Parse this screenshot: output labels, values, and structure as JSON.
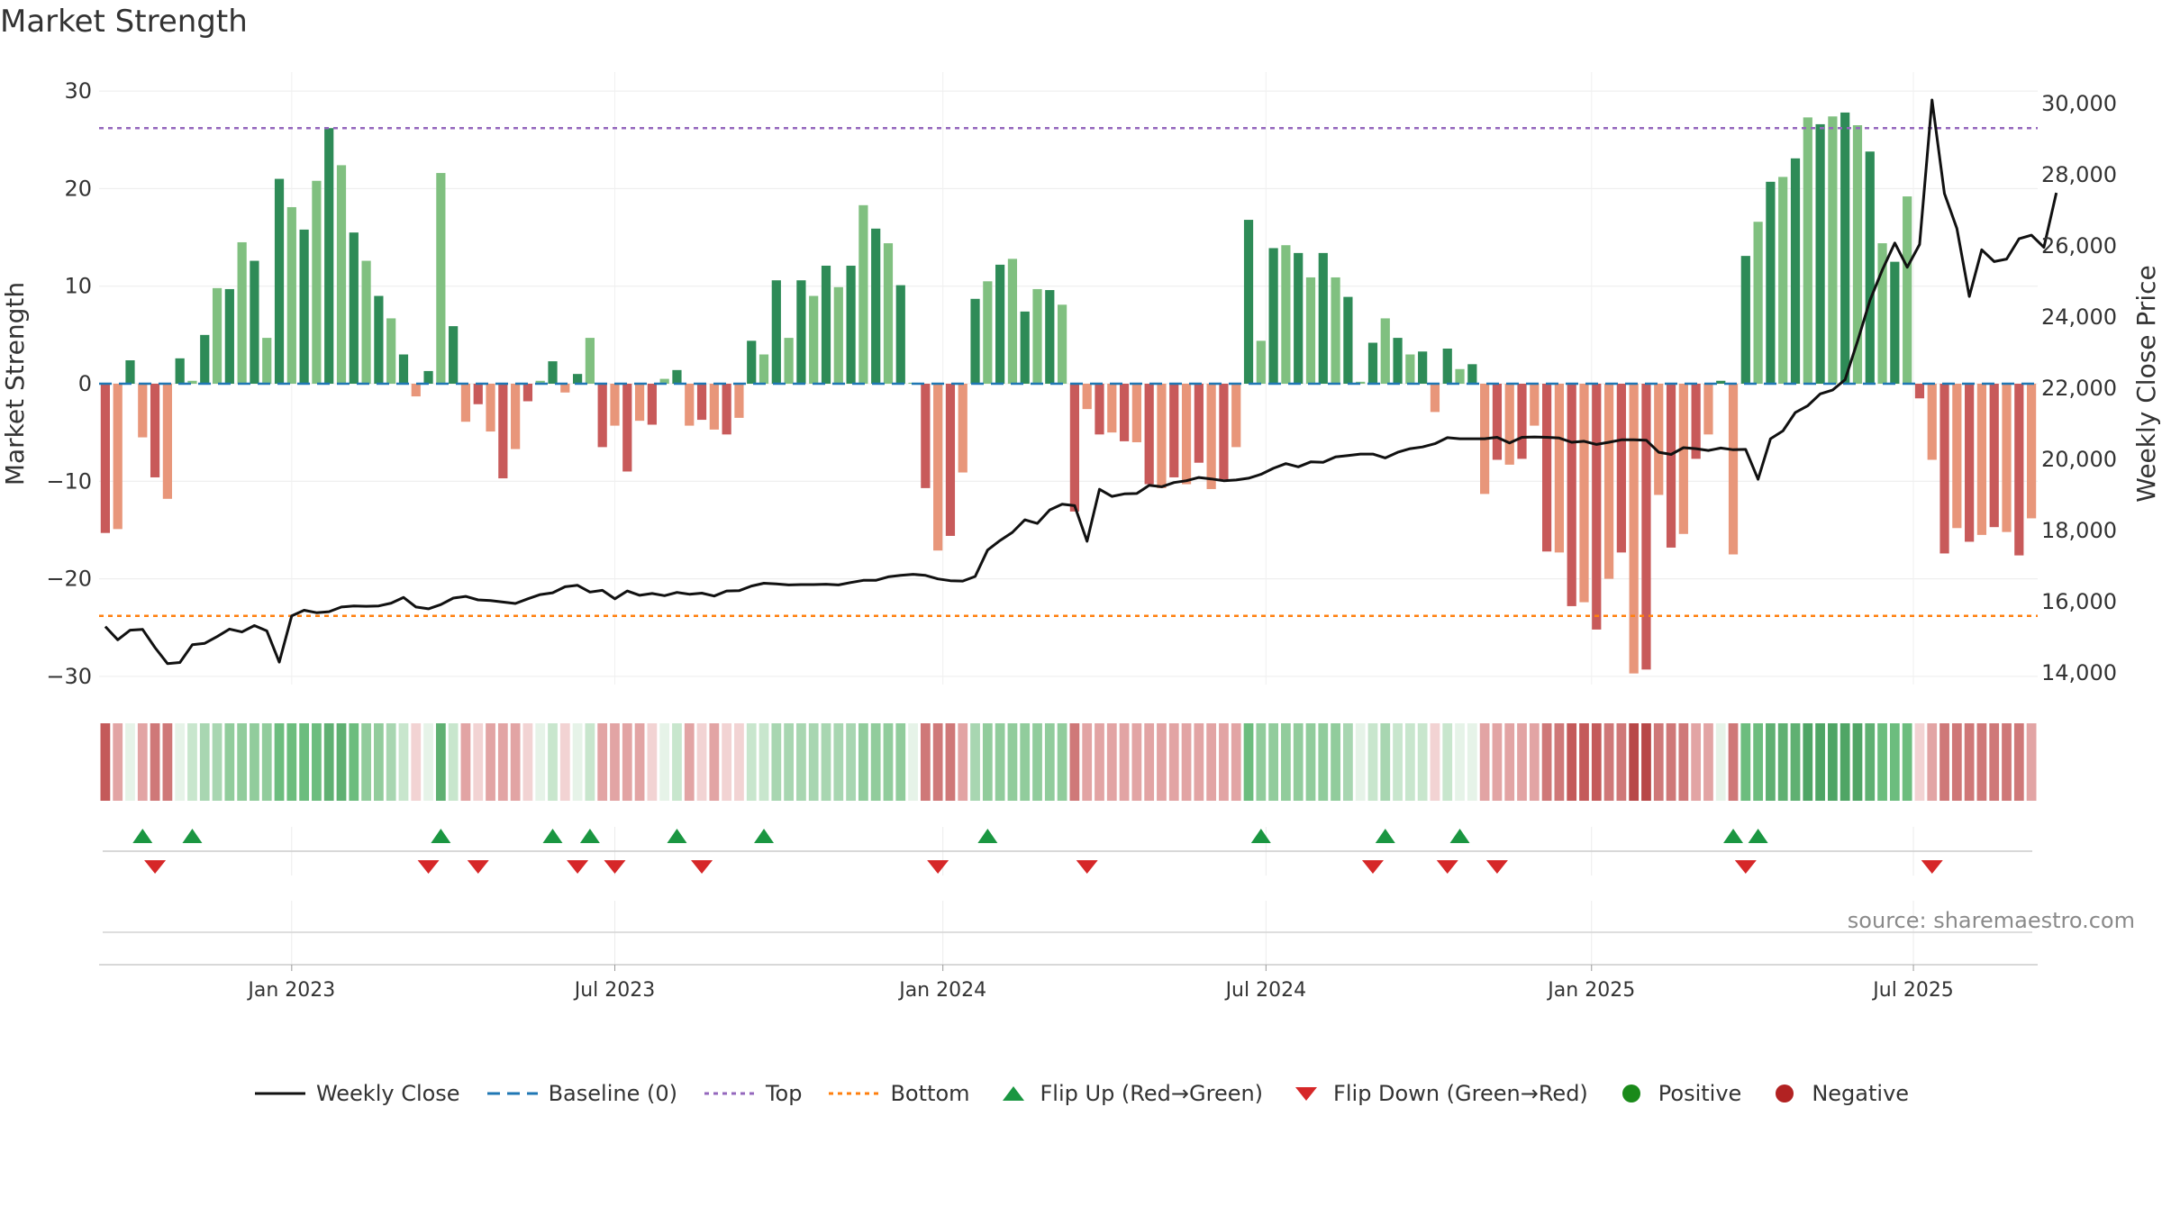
{
  "chart_data": {
    "type": "bar",
    "title": "Market Strength",
    "ylabel": "Market Strength",
    "y2label": "Weekly Close Price",
    "ylim": [
      -33,
      33
    ],
    "y2lim": [
      13160,
      30640
    ],
    "yticks": [
      30,
      20,
      10,
      0,
      -10,
      -20,
      -30
    ],
    "ytick_labels": [
      "30",
      "20",
      "10",
      "0",
      "−10",
      "−20",
      "−30"
    ],
    "y2ticks": [
      30000,
      28000,
      26000,
      24000,
      22000,
      20000,
      18000,
      16000,
      14000
    ],
    "y2tick_labels": [
      "30,000",
      "28,000",
      "26,000",
      "24,000",
      "22,000",
      "20,000",
      "18,000",
      "16,000",
      "14,000"
    ],
    "xticks": [
      {
        "label": "Jan 2023",
        "week": 15
      },
      {
        "label": "Jul 2023",
        "week": 41
      },
      {
        "label": "Jan 2024",
        "week": 67.4
      },
      {
        "label": "Jul 2024",
        "week": 93.4
      },
      {
        "label": "Jan 2025",
        "week": 119.6
      },
      {
        "label": "Jul 2025",
        "week": 145.5
      }
    ],
    "top_line": 26.2,
    "bottom_line": -23.8,
    "series": [
      {
        "name": "Market Strength",
        "values": [
          -15.3,
          -14.9,
          2.4,
          -5.5,
          -9.6,
          -11.8,
          2.6,
          0.3,
          5.0,
          9.8,
          9.7,
          14.5,
          12.6,
          4.7,
          21.0,
          18.1,
          15.8,
          20.8,
          26.2,
          22.4,
          15.5,
          12.6,
          9.0,
          6.7,
          3.0,
          -1.3,
          1.3,
          21.6,
          5.9,
          -3.9,
          -2.1,
          -4.9,
          -9.7,
          -6.7,
          -1.8,
          0.3,
          2.3,
          -0.9,
          1.0,
          4.7,
          -6.5,
          -4.3,
          -9.0,
          -3.8,
          -4.2,
          0.5,
          1.4,
          -4.3,
          -3.7,
          -4.7,
          -5.2,
          -3.5,
          4.4,
          3.0,
          10.6,
          4.7,
          10.6,
          9.0,
          12.1,
          9.9,
          12.1,
          18.3,
          15.9,
          14.4,
          10.1,
          0.1,
          -10.7,
          -17.1,
          -15.6,
          -9.1,
          8.7,
          10.5,
          12.2,
          12.8,
          7.4,
          9.7,
          9.6,
          8.1,
          -13.1,
          -2.6,
          -5.2,
          -5.0,
          -5.9,
          -6.0,
          -10.3,
          -10.7,
          -9.6,
          -10.3,
          -8.1,
          -10.8,
          -9.8,
          -6.5,
          16.8,
          4.4,
          13.9,
          14.2,
          13.4,
          10.9,
          13.4,
          10.9,
          8.9,
          0.2,
          4.2,
          6.7,
          4.7,
          3.0,
          3.3,
          -2.9,
          3.6,
          1.5,
          2.0,
          -11.3,
          -7.8,
          -8.3,
          -7.7,
          -4.3,
          -17.2,
          -17.3,
          -22.8,
          -22.4,
          -25.2,
          -20.0,
          -17.3,
          -29.7,
          -29.3,
          -11.4,
          -16.8,
          -15.4,
          -7.7,
          -5.2,
          0.3,
          -17.5,
          13.1,
          16.6,
          20.7,
          21.2,
          23.1,
          27.3,
          26.6,
          27.4,
          27.8,
          26.5,
          23.8,
          14.4,
          12.5,
          19.2,
          -1.5,
          -7.8,
          -17.4,
          -14.8,
          -16.2,
          -15.5,
          -14.7,
          -15.2,
          -17.6,
          -13.8
        ]
      },
      {
        "name": "Weekly Close",
        "values": [
          15300,
          14930,
          15200,
          15220,
          14710,
          14260,
          14290,
          14790,
          14830,
          15020,
          15230,
          15150,
          15330,
          15180,
          14300,
          15600,
          15760,
          15690,
          15720,
          15850,
          15880,
          15870,
          15880,
          15960,
          16120,
          15850,
          15800,
          15920,
          16100,
          16150,
          16050,
          16030,
          15990,
          15950,
          16080,
          16200,
          16250,
          16420,
          16460,
          16270,
          16320,
          16080,
          16300,
          16180,
          16230,
          16170,
          16260,
          16210,
          16240,
          16160,
          16300,
          16310,
          16440,
          16520,
          16500,
          16470,
          16480,
          16480,
          16490,
          16470,
          16540,
          16600,
          16600,
          16700,
          16740,
          16770,
          16740,
          16640,
          16590,
          16580,
          16710,
          17450,
          17720,
          17950,
          18300,
          18200,
          18580,
          18740,
          18700,
          17700,
          19160,
          18960,
          19030,
          19040,
          19270,
          19230,
          19350,
          19400,
          19490,
          19450,
          19400,
          19420,
          19470,
          19580,
          19750,
          19880,
          19790,
          19930,
          19920,
          20070,
          20110,
          20150,
          20150,
          20040,
          20200,
          20300,
          20350,
          20440,
          20610,
          20580,
          20580,
          20580,
          20620,
          20460,
          20620,
          20630,
          20620,
          20600,
          20480,
          20510,
          20420,
          20480,
          20550,
          20550,
          20540,
          20200,
          20140,
          20330,
          20300,
          20250,
          20320,
          20270,
          20280,
          19440,
          20580,
          20800,
          21320,
          21510,
          21840,
          21950,
          22240,
          23320,
          24470,
          25330,
          26080,
          25400,
          26040,
          30100,
          27470,
          26490,
          24580,
          25890,
          25560,
          25630,
          26200,
          26300,
          25960,
          27490
        ]
      }
    ],
    "strip_colors": [
      "#c45a5a",
      "#e2a4a4",
      "#e6f3e8",
      "#e2a4a4",
      "#cf7878",
      "#cf7878",
      "#e6f3e8",
      "#c8e6cd",
      "#a8d6b1",
      "#a8d6b1",
      "#91cc9c",
      "#91cc9c",
      "#91cc9c",
      "#91cc9c",
      "#6cbd7e",
      "#6cbd7e",
      "#6cbd7e",
      "#6cbd7e",
      "#5fb072",
      "#5fb072",
      "#6cbd7e",
      "#91cc9c",
      "#91cc9c",
      "#a8d6b1",
      "#c8e6cd",
      "#f2d3d3",
      "#e6f3e8",
      "#5fb072",
      "#c8e6cd",
      "#e2a4a4",
      "#f2d3d3",
      "#e2a4a4",
      "#e2a4a4",
      "#e2a4a4",
      "#f2d3d3",
      "#e6f3e8",
      "#c8e6cd",
      "#f2d3d3",
      "#e6f3e8",
      "#c8e6cd",
      "#e2a4a4",
      "#e2a4a4",
      "#e2a4a4",
      "#e2a4a4",
      "#f2d3d3",
      "#e6f3e8",
      "#c8e6cd",
      "#e2a4a4",
      "#f2d3d3",
      "#e2a4a4",
      "#f2d3d3",
      "#f2d3d3",
      "#c8e6cd",
      "#c8e6cd",
      "#a8d6b1",
      "#a8d6b1",
      "#a8d6b1",
      "#a8d6b1",
      "#a8d6b1",
      "#a8d6b1",
      "#a8d6b1",
      "#91cc9c",
      "#91cc9c",
      "#91cc9c",
      "#91cc9c",
      "#e6f3e8",
      "#cf7878",
      "#cf7878",
      "#cf7878",
      "#e2a4a4",
      "#a8d6b1",
      "#91cc9c",
      "#91cc9c",
      "#91cc9c",
      "#91cc9c",
      "#91cc9c",
      "#91cc9c",
      "#91cc9c",
      "#cf7878",
      "#e2a4a4",
      "#e2a4a4",
      "#e2a4a4",
      "#e2a4a4",
      "#e2a4a4",
      "#e2a4a4",
      "#e2a4a4",
      "#e2a4a4",
      "#e2a4a4",
      "#e2a4a4",
      "#e2a4a4",
      "#e2a4a4",
      "#e2a4a4",
      "#6cbd7e",
      "#91cc9c",
      "#91cc9c",
      "#91cc9c",
      "#91cc9c",
      "#91cc9c",
      "#91cc9c",
      "#91cc9c",
      "#a8d6b1",
      "#e6f3e8",
      "#c8e6cd",
      "#a8d6b1",
      "#c8e6cd",
      "#c8e6cd",
      "#c8e6cd",
      "#f2d3d3",
      "#c8e6cd",
      "#e6f3e8",
      "#e6f3e8",
      "#e2a4a4",
      "#e2a4a4",
      "#e2a4a4",
      "#e2a4a4",
      "#e2a4a4",
      "#cf7878",
      "#cf7878",
      "#c45a5a",
      "#c45a5a",
      "#c45a5a",
      "#cf7878",
      "#cf7878",
      "#b84848",
      "#b84848",
      "#cf7878",
      "#cf7878",
      "#cf7878",
      "#e2a4a4",
      "#e2a4a4",
      "#e6f3e8",
      "#cf7878",
      "#6cbd7e",
      "#6cbd7e",
      "#5fb072",
      "#5fb072",
      "#5fb072",
      "#4fa565",
      "#4fa565",
      "#4fa565",
      "#4fa565",
      "#4fa565",
      "#5fb072",
      "#6cbd7e",
      "#6cbd7e",
      "#6cbd7e",
      "#f2d3d3",
      "#e2a4a4",
      "#cf7878",
      "#cf7878",
      "#cf7878",
      "#cf7878",
      "#cf7878",
      "#cf7878",
      "#cf7878",
      "#e2a4a4"
    ],
    "flip_up_weeks": [
      3,
      7,
      27,
      36,
      39,
      46,
      53,
      71,
      93,
      103,
      109,
      131,
      133
    ],
    "flip_down_weeks": [
      4,
      26,
      30,
      38,
      41,
      48,
      67,
      79,
      102,
      108,
      112,
      132,
      147
    ],
    "colors": {
      "strong_positive": "#2e8b57",
      "weak_positive": "#80c080",
      "strong_negative": "#c85a5a",
      "weak_negative": "#e8967a",
      "weekly_close": "#111111",
      "baseline": "#1f77b4",
      "top": "#9467bd",
      "bottom": "#ff7f0e",
      "flip_up": "#1a9641",
      "flip_down": "#d62728",
      "positive": "#1a8a1a",
      "negative": "#b22222"
    }
  },
  "source_text": "source: sharemaestro.com",
  "legend": [
    {
      "key": "weekly_close",
      "label": "Weekly Close"
    },
    {
      "key": "baseline",
      "label": "Baseline (0)"
    },
    {
      "key": "top",
      "label": "Top"
    },
    {
      "key": "bottom",
      "label": "Bottom"
    },
    {
      "key": "flip_up",
      "label": "Flip Up (Red→Green)"
    },
    {
      "key": "flip_down",
      "label": "Flip Down (Green→Red)"
    },
    {
      "key": "positive",
      "label": "Positive"
    },
    {
      "key": "negative",
      "label": "Negative"
    }
  ]
}
